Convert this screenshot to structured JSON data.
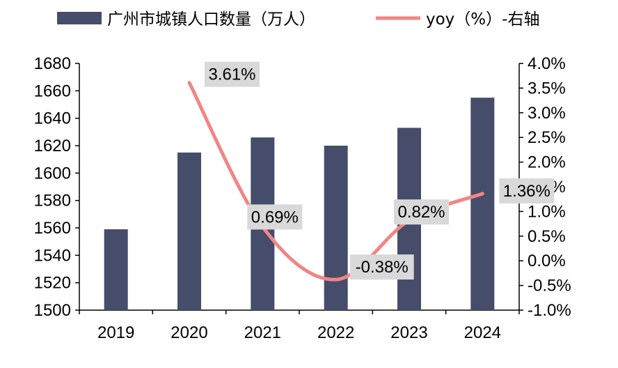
{
  "chart_data": {
    "type": "bar",
    "categories": [
      "2019",
      "2020",
      "2021",
      "2022",
      "2023",
      "2024"
    ],
    "series": [
      {
        "name": "广州市城镇人口数量（万人）",
        "kind": "bar",
        "axis": "left",
        "color": "#454d6b",
        "values": [
          1559,
          1615,
          1626,
          1620,
          1633,
          1655
        ]
      },
      {
        "name": "yoy（%）-右轴",
        "kind": "line",
        "axis": "right",
        "color": "#f28585",
        "values": [
          null,
          3.61,
          0.69,
          -0.38,
          0.82,
          1.36
        ],
        "data_labels": [
          "",
          "3.61%",
          "0.69%",
          "-0.38%",
          "0.82%",
          "1.36%"
        ]
      }
    ],
    "y_left": {
      "min": 1500,
      "max": 1680,
      "step": 20,
      "ticks": [
        "1500",
        "1520",
        "1540",
        "1560",
        "1580",
        "1600",
        "1620",
        "1640",
        "1660",
        "1680"
      ]
    },
    "y_right": {
      "min": -1.0,
      "max": 4.0,
      "step": 0.5,
      "ticks": [
        "-1.0%",
        "-0.5%",
        "0.0%",
        "0.5%",
        "1.0%",
        "1.5%",
        "2.0%",
        "2.5%",
        "3.0%",
        "3.5%",
        "4.0%"
      ]
    },
    "legend_position": "top",
    "label_box_color": "#d9d9d9",
    "grid": false
  }
}
